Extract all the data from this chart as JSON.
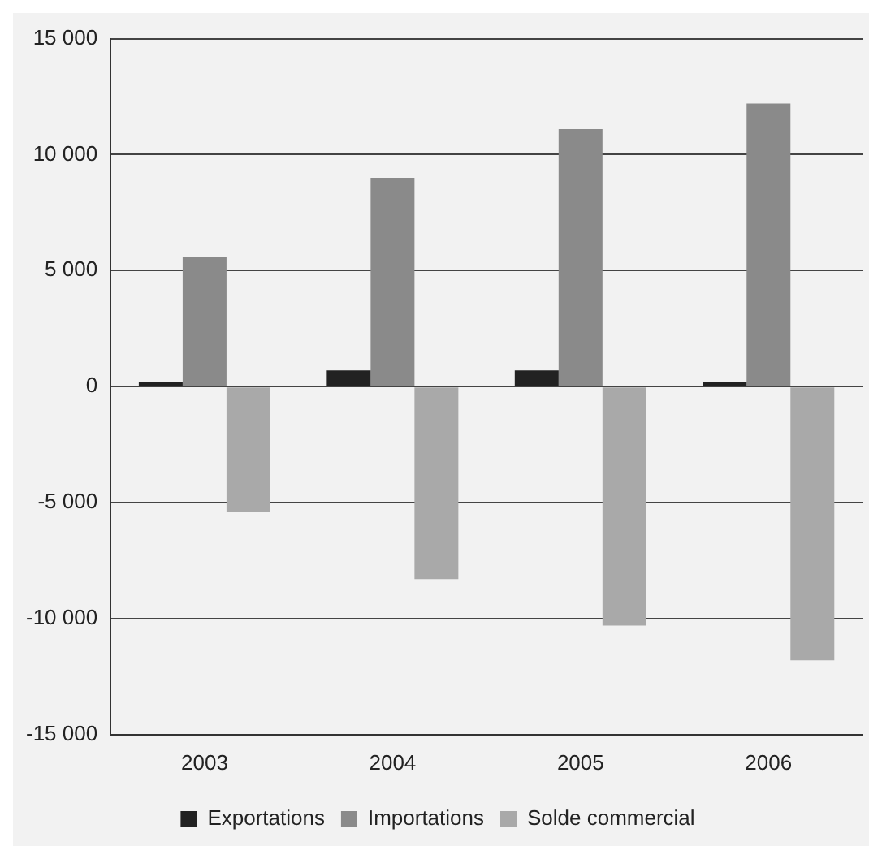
{
  "chart_data": {
    "type": "bar",
    "categories": [
      "2003",
      "2004",
      "2005",
      "2006"
    ],
    "series": [
      {
        "name": "Exportations",
        "color": "#222222",
        "values": [
          200,
          700,
          700,
          200
        ]
      },
      {
        "name": "Importations",
        "color": "#8a8a8a",
        "values": [
          5600,
          9000,
          11100,
          12200
        ]
      },
      {
        "name": "Solde commercial",
        "color": "#a9a9a9",
        "values": [
          -5400,
          -8300,
          -10300,
          -11800
        ]
      }
    ],
    "ylim": [
      -15000,
      15000
    ],
    "yticks": [
      {
        "value": -15000,
        "label": "-15 000"
      },
      {
        "value": -10000,
        "label": "-10 000"
      },
      {
        "value": -5000,
        "label": "-5 000"
      },
      {
        "value": 0,
        "label": "0"
      },
      {
        "value": 5000,
        "label": "5 000"
      },
      {
        "value": 10000,
        "label": "10 000"
      },
      {
        "value": 15000,
        "label": "15 000"
      }
    ],
    "grid": "y",
    "legend": "bottom"
  }
}
